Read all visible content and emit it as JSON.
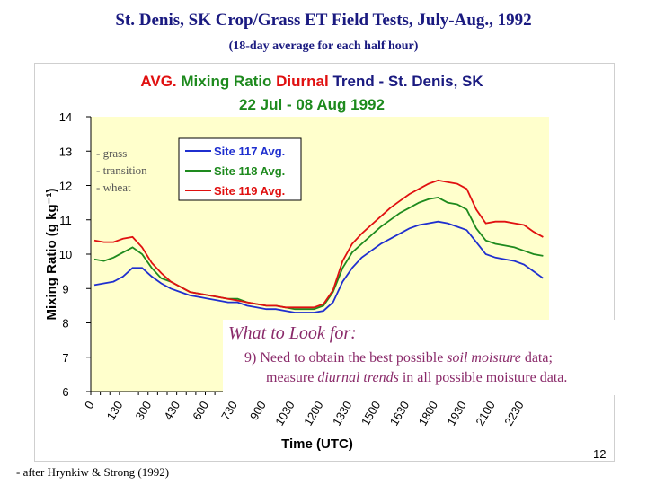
{
  "slide": {
    "title": "St. Denis, SK Crop/Grass ET Field Tests, July-Aug., 1992",
    "subtitle": "(18-day average for each half hour)",
    "footer": "- after Hrynkiw & Strong (1992)",
    "page_number": "12"
  },
  "callout": {
    "title": "What to Look for:",
    "line1_a": "9) Need to obtain the best possible ",
    "line1_b": "soil moisture",
    "line1_c": " data;",
    "line2_a": "measure ",
    "line2_b": "diurnal trends",
    "line2_c": " in all possible moisture data."
  },
  "chart_data": {
    "type": "line",
    "title_parts": {
      "avg": "AVG.",
      "mixing": " Mixing Ratio ",
      "diurnal": "Diurnal",
      "trend": " Trend - St. Denis, SK"
    },
    "title_line2": "22 Jul - 08 Aug 1992",
    "xlabel": "Time  (UTC)",
    "ylabel": "Mixing Ratio (g kg⁻¹)",
    "ylim": [
      6,
      14
    ],
    "yticks": [
      6,
      7,
      8,
      9,
      10,
      11,
      12,
      13,
      14
    ],
    "xlim": [
      0,
      2400
    ],
    "xticks": [
      {
        "value": 0,
        "label": "0"
      },
      {
        "value": 130,
        "label": "130"
      },
      {
        "value": 300,
        "label": "300"
      },
      {
        "value": 430,
        "label": "430"
      },
      {
        "value": 600,
        "label": "600"
      },
      {
        "value": 730,
        "label": "730"
      },
      {
        "value": 900,
        "label": "900"
      },
      {
        "value": 1030,
        "label": "1030"
      },
      {
        "value": 1200,
        "label": "1200"
      },
      {
        "value": 1330,
        "label": "1330"
      },
      {
        "value": 1500,
        "label": "1500"
      },
      {
        "value": 1630,
        "label": "1630"
      },
      {
        "value": 1800,
        "label": "1800"
      },
      {
        "value": 1930,
        "label": "1930"
      },
      {
        "value": 2100,
        "label": "2100"
      },
      {
        "value": 2230,
        "label": "2230"
      }
    ],
    "grid": false,
    "legend_position": "top-center",
    "annotation_lines": [
      "- grass",
      "- transition",
      "- wheat"
    ],
    "x": [
      0,
      30,
      100,
      130,
      200,
      230,
      300,
      330,
      400,
      430,
      500,
      530,
      600,
      630,
      700,
      730,
      800,
      830,
      900,
      930,
      1000,
      1030,
      1100,
      1130,
      1200,
      1230,
      1300,
      1330,
      1400,
      1430,
      1500,
      1530,
      1600,
      1630,
      1700,
      1730,
      1800,
      1830,
      1900,
      1930,
      2000,
      2030,
      2100,
      2130,
      2200,
      2230,
      2300,
      2330
    ],
    "series": [
      {
        "name": "Site 117 Avg.",
        "color": "#1f2fcf",
        "values": [
          9.1,
          9.15,
          9.2,
          9.35,
          9.6,
          9.6,
          9.35,
          9.15,
          9.0,
          8.9,
          8.8,
          8.75,
          8.7,
          8.65,
          8.6,
          8.6,
          8.5,
          8.45,
          8.4,
          8.4,
          8.35,
          8.3,
          8.3,
          8.3,
          8.35,
          8.6,
          9.2,
          9.6,
          9.9,
          10.1,
          10.3,
          10.45,
          10.6,
          10.75,
          10.85,
          10.9,
          10.95,
          10.9,
          10.8,
          10.7,
          10.35,
          10.0,
          9.9,
          9.85,
          9.8,
          9.7,
          9.5,
          9.3
        ]
      },
      {
        "name": "Site 118 Avg.",
        "color": "#1e8a1e",
        "values": [
          9.85,
          9.8,
          9.9,
          10.05,
          10.2,
          10.0,
          9.6,
          9.3,
          9.2,
          9.05,
          8.9,
          8.85,
          8.8,
          8.75,
          8.7,
          8.7,
          8.6,
          8.55,
          8.5,
          8.5,
          8.45,
          8.4,
          8.4,
          8.4,
          8.5,
          8.9,
          9.6,
          10.05,
          10.3,
          10.55,
          10.8,
          11.0,
          11.2,
          11.35,
          11.5,
          11.6,
          11.65,
          11.5,
          11.45,
          11.3,
          10.75,
          10.4,
          10.3,
          10.25,
          10.2,
          10.1,
          10.0,
          9.95
        ]
      },
      {
        "name": "Site 119 Avg.",
        "color": "#e01010",
        "values": [
          10.4,
          10.35,
          10.35,
          10.45,
          10.5,
          10.2,
          9.75,
          9.45,
          9.2,
          9.05,
          8.9,
          8.85,
          8.8,
          8.75,
          8.7,
          8.65,
          8.6,
          8.55,
          8.5,
          8.5,
          8.45,
          8.45,
          8.45,
          8.45,
          8.55,
          8.95,
          9.8,
          10.3,
          10.6,
          10.85,
          11.1,
          11.35,
          11.55,
          11.75,
          11.9,
          12.05,
          12.15,
          12.1,
          12.05,
          11.9,
          11.3,
          10.9,
          10.95,
          10.95,
          10.9,
          10.85,
          10.65,
          10.5
        ]
      }
    ]
  },
  "colors": {
    "plot_background": "#ffffcc",
    "title_navy": "#1a1a80",
    "chart_red": "#e01010",
    "chart_green": "#1e8a1e",
    "callout_text": "#8a2a6a"
  }
}
